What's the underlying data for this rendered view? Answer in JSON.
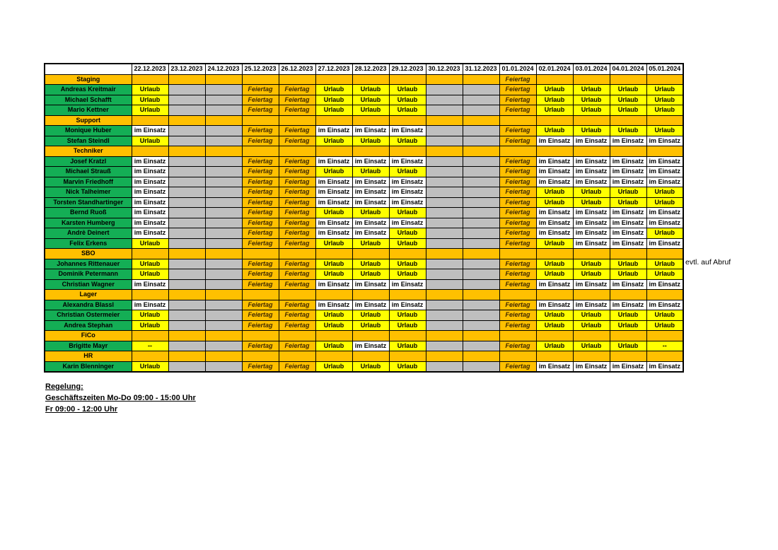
{
  "colors": {
    "vacation_yellow": "#FFFF00",
    "holiday_orange": "#FFC000",
    "weekend_gray": "#BFBFBF",
    "name_green": "#14AE55",
    "duty_white": "#FFFFFF",
    "feiertag_text": "#3F2A00"
  },
  "side_note": "evtl. auf Abruf",
  "footer": {
    "heading": "Regelung:",
    "line2": "Geschäftszeiten Mo-Do 09:00 - 15:00 Uhr",
    "line3": "Fr 09:00 - 12:00 Uhr"
  },
  "table": {
    "corner": "",
    "dates": [
      "22.12.2023",
      "23.12.2023",
      "24.12.2023",
      "25.12.2023",
      "26.12.2023",
      "27.12.2023",
      "28.12.2023",
      "29.12.2023",
      "30.12.2023",
      "31.12.2023",
      "01.01.2024",
      "02.01.2024",
      "03.01.2024",
      "04.01.2024",
      "05.01.2024"
    ],
    "states": {
      "U": {
        "label": "Urlaub",
        "class": "u"
      },
      "E": {
        "label": "im Einsatz",
        "class": "e"
      },
      "F": {
        "label": "Feiertag",
        "class": "f"
      },
      "W": {
        "label": "",
        "class": "w"
      },
      "O": {
        "label": "",
        "class": "o"
      },
      "D": {
        "label": "--",
        "class": "d"
      }
    },
    "rows": [
      {
        "type": "dept",
        "label": "Staging",
        "cells": [
          "O",
          "O",
          "O",
          "O",
          "O",
          "O",
          "O",
          "O",
          "O",
          "O",
          "F",
          "O",
          "O",
          "O",
          "O"
        ]
      },
      {
        "type": "person",
        "label": "Andreas Kreitmair",
        "cells": [
          "U",
          "W",
          "W",
          "F",
          "F",
          "U",
          "U",
          "U",
          "W",
          "W",
          "F",
          "U",
          "U",
          "U",
          "U"
        ]
      },
      {
        "type": "person",
        "label": "Michael Schafft",
        "cells": [
          "U",
          "W",
          "W",
          "F",
          "F",
          "U",
          "U",
          "U",
          "W",
          "W",
          "F",
          "U",
          "U",
          "U",
          "U"
        ]
      },
      {
        "type": "person",
        "label": "Mario Kettner",
        "cells": [
          "U",
          "W",
          "W",
          "F",
          "F",
          "U",
          "U",
          "U",
          "W",
          "W",
          "F",
          "U",
          "U",
          "U",
          "U"
        ]
      },
      {
        "type": "dept",
        "label": "Support",
        "cells": [
          "O",
          "O",
          "O",
          "O",
          "O",
          "O",
          "O",
          "O",
          "O",
          "O",
          "O",
          "O",
          "O",
          "O",
          "O"
        ]
      },
      {
        "type": "person",
        "label": "Monique Huber",
        "cells": [
          "E",
          "W",
          "W",
          "F",
          "F",
          "E",
          "E",
          "E",
          "W",
          "W",
          "F",
          "U",
          "U",
          "U",
          "U"
        ]
      },
      {
        "type": "person",
        "label": "Stefan Steindl",
        "cells": [
          "U",
          "W",
          "W",
          "F",
          "F",
          "U",
          "U",
          "U",
          "W",
          "W",
          "F",
          "E",
          "E",
          "E",
          "E"
        ]
      },
      {
        "type": "dept",
        "label": "Techniker",
        "cells": [
          "O",
          "O",
          "O",
          "O",
          "O",
          "O",
          "O",
          "O",
          "O",
          "O",
          "O",
          "O",
          "O",
          "O",
          "O"
        ]
      },
      {
        "type": "person",
        "label": "Josef Kratzl",
        "cells": [
          "E",
          "W",
          "W",
          "F",
          "F",
          "E",
          "E",
          "E",
          "W",
          "W",
          "F",
          "E",
          "E",
          "E",
          "E"
        ]
      },
      {
        "type": "person",
        "label": "Michael Strauß",
        "cells": [
          "E",
          "W",
          "W",
          "F",
          "F",
          "U",
          "U",
          "U",
          "W",
          "W",
          "F",
          "E",
          "E",
          "E",
          "E"
        ]
      },
      {
        "type": "person",
        "label": "Marvin Friedhoff",
        "cells": [
          "E",
          "W",
          "W",
          "F",
          "F",
          "E",
          "E",
          "E",
          "W",
          "W",
          "F",
          "E",
          "E",
          "E",
          "E"
        ]
      },
      {
        "type": "person",
        "label": "Nick Talheimer",
        "cells": [
          "E",
          "W",
          "W",
          "F",
          "F",
          "E",
          "E",
          "E",
          "W",
          "W",
          "F",
          "U",
          "U",
          "U",
          "U"
        ]
      },
      {
        "type": "person",
        "label": "Torsten Standhartinger",
        "cells": [
          "E",
          "W",
          "W",
          "F",
          "F",
          "E",
          "E",
          "E",
          "W",
          "W",
          "F",
          "U",
          "U",
          "U",
          "U"
        ]
      },
      {
        "type": "person",
        "label": "Bernd Ruoß",
        "cells": [
          "E",
          "W",
          "W",
          "F",
          "F",
          "U",
          "U",
          "U",
          "W",
          "W",
          "F",
          "E",
          "E",
          "E",
          "E"
        ]
      },
      {
        "type": "person",
        "label": "Karsten Humberg",
        "cells": [
          "E",
          "W",
          "W",
          "F",
          "F",
          "E",
          "E",
          "E",
          "W",
          "W",
          "F",
          "E",
          "E",
          "E",
          "E"
        ]
      },
      {
        "type": "person",
        "label": "Andrè Deinert",
        "cells": [
          "E",
          "W",
          "W",
          "F",
          "F",
          "E",
          "E",
          "U",
          "W",
          "W",
          "F",
          "E",
          "E",
          "E",
          "U"
        ]
      },
      {
        "type": "person",
        "label": "Felix Erkens",
        "cells": [
          "U",
          "W",
          "W",
          "F",
          "F",
          "U",
          "U",
          "U",
          "W",
          "W",
          "F",
          "U",
          "E",
          "E",
          "E"
        ]
      },
      {
        "type": "dept",
        "label": "SBO",
        "cells": [
          "O",
          "O",
          "O",
          "O",
          "O",
          "O",
          "O",
          "O",
          "O",
          "O",
          "O",
          "O",
          "O",
          "O",
          "O"
        ]
      },
      {
        "type": "person",
        "label": "Johannes Rittenauer",
        "cells": [
          "U",
          "W",
          "W",
          "F",
          "F",
          "U",
          "U",
          "U",
          "W",
          "W",
          "F",
          "U",
          "U",
          "U",
          "U"
        ]
      },
      {
        "type": "person",
        "label": "Dominik Petermann",
        "cells": [
          "U",
          "W",
          "W",
          "F",
          "F",
          "U",
          "U",
          "U",
          "W",
          "W",
          "F",
          "U",
          "U",
          "U",
          "U"
        ]
      },
      {
        "type": "person",
        "label": "Christian Wagner",
        "cells": [
          "E",
          "W",
          "W",
          "F",
          "F",
          "E",
          "E",
          "E",
          "W",
          "W",
          "F",
          "E",
          "E",
          "E",
          "E"
        ]
      },
      {
        "type": "dept",
        "label": "Lager",
        "cells": [
          "O",
          "O",
          "O",
          "O",
          "O",
          "O",
          "O",
          "O",
          "O",
          "O",
          "O",
          "O",
          "O",
          "O",
          "O"
        ]
      },
      {
        "type": "person",
        "label": "Alexandra Blassl",
        "cells": [
          "E",
          "W",
          "W",
          "F",
          "F",
          "E",
          "E",
          "E",
          "W",
          "W",
          "F",
          "E",
          "E",
          "E",
          "E"
        ]
      },
      {
        "type": "person",
        "label": "Christian Ostermeier",
        "cells": [
          "U",
          "W",
          "W",
          "F",
          "F",
          "U",
          "U",
          "U",
          "W",
          "W",
          "F",
          "U",
          "U",
          "U",
          "U"
        ]
      },
      {
        "type": "person",
        "label": "Andrea Stephan",
        "cells": [
          "U",
          "W",
          "W",
          "F",
          "F",
          "U",
          "U",
          "U",
          "W",
          "W",
          "F",
          "U",
          "U",
          "U",
          "U"
        ]
      },
      {
        "type": "dept",
        "label": "FiCo",
        "cells": [
          "O",
          "O",
          "O",
          "O",
          "O",
          "O",
          "O",
          "O",
          "O",
          "O",
          "O",
          "O",
          "O",
          "O",
          "O"
        ]
      },
      {
        "type": "person",
        "label": "Brigitte Mayr",
        "cells": [
          "D",
          "W",
          "W",
          "F",
          "F",
          "U",
          "E",
          "U",
          "W",
          "W",
          "F",
          "U",
          "U",
          "U",
          "D"
        ]
      },
      {
        "type": "dept",
        "label": "HR",
        "cells": [
          "O",
          "O",
          "O",
          "O",
          "O",
          "O",
          "O",
          "O",
          "O",
          "O",
          "O",
          "O",
          "O",
          "O",
          "O"
        ]
      },
      {
        "type": "person",
        "label": "Karin Blenninger",
        "cells": [
          "U",
          "W",
          "W",
          "F",
          "F",
          "U",
          "U",
          "U",
          "W",
          "W",
          "F",
          "E",
          "E",
          "E",
          "E"
        ]
      }
    ]
  }
}
